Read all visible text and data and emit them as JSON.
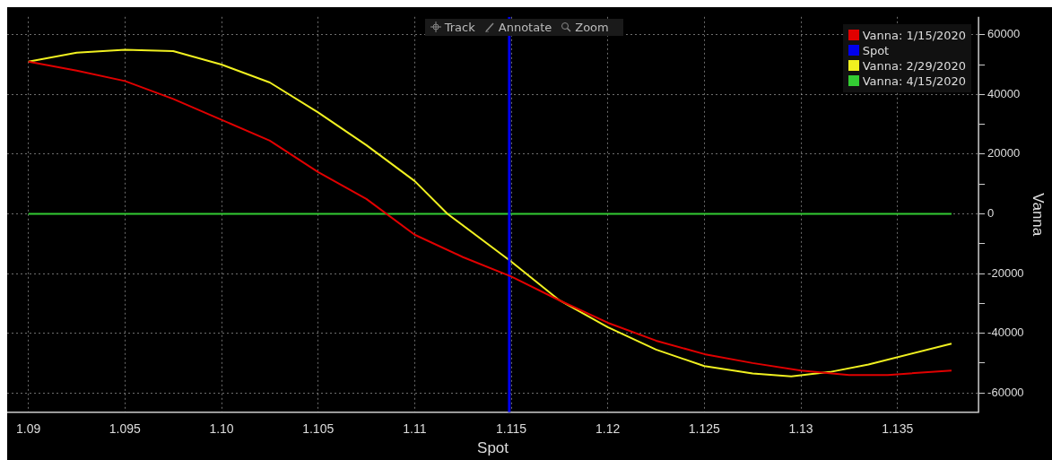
{
  "chart_data": {
    "type": "line",
    "xlabel": "Spot",
    "ylabel": "Vanna",
    "xlim": [
      1.0889,
      1.1392
    ],
    "xticks": [
      1.09,
      1.095,
      {
        "value": 1.1,
        "label": "1.10"
      },
      1.105,
      1.11,
      1.115,
      1.12,
      1.125,
      1.13,
      1.135
    ],
    "ylim": [
      -66500,
      66000
    ],
    "yticks": [
      -60000,
      {
        "value": -50000,
        "label": null
      },
      -40000,
      {
        "value": -30000,
        "label": null
      },
      -20000,
      {
        "value": -10000,
        "label": null
      },
      0,
      {
        "value": 10000,
        "label": null
      },
      20000,
      {
        "value": 30000,
        "label": null
      },
      40000,
      {
        "value": 50000,
        "label": null
      },
      60000
    ],
    "series": [
      {
        "name": "Vanna: 1/15/2020",
        "color": "#e00000",
        "x": [
          1.09,
          1.0925,
          1.095,
          1.0975,
          1.1,
          1.1025,
          1.105,
          1.1075,
          1.11,
          1.1125,
          1.115,
          1.1175,
          1.12,
          1.1225,
          1.125,
          1.1275,
          1.13,
          1.1325,
          1.1345,
          1.1378
        ],
        "values": [
          51000,
          48000,
          44500,
          38500,
          31500,
          24500,
          14000,
          5000,
          -7000,
          -14500,
          -21000,
          -29000,
          -36500,
          -42500,
          -47000,
          -50000,
          -52500,
          -54000,
          -54000,
          -52500
        ]
      },
      {
        "name": "Spot",
        "color": "#0000ee",
        "x": [
          1.1149,
          1.1149
        ],
        "values": [
          -66500,
          66000
        ]
      },
      {
        "name": "Vanna: 2/29/2020",
        "color": "#f0f020",
        "x": [
          1.09,
          1.0925,
          1.095,
          1.0975,
          1.1,
          1.1025,
          1.105,
          1.1075,
          1.11,
          1.1117,
          1.115,
          1.1175,
          1.12,
          1.1225,
          1.125,
          1.1275,
          1.1295,
          1.1315,
          1.1335,
          1.1378
        ],
        "values": [
          51000,
          54000,
          55000,
          54500,
          50000,
          44000,
          34000,
          23000,
          11000,
          0,
          -16000,
          -29000,
          -38000,
          -45500,
          -51000,
          -53500,
          -54500,
          -53000,
          -50500,
          -43500
        ]
      },
      {
        "name": "Vanna: 4/15/2020",
        "color": "#33cc33",
        "x": [
          1.09,
          1.1378
        ],
        "values": [
          0,
          0
        ]
      }
    ],
    "annotations": [
      "Track",
      "Annotate",
      "Zoom"
    ],
    "grid": true,
    "legend": "top right",
    "marker": "none",
    "line_style": "solid"
  }
}
